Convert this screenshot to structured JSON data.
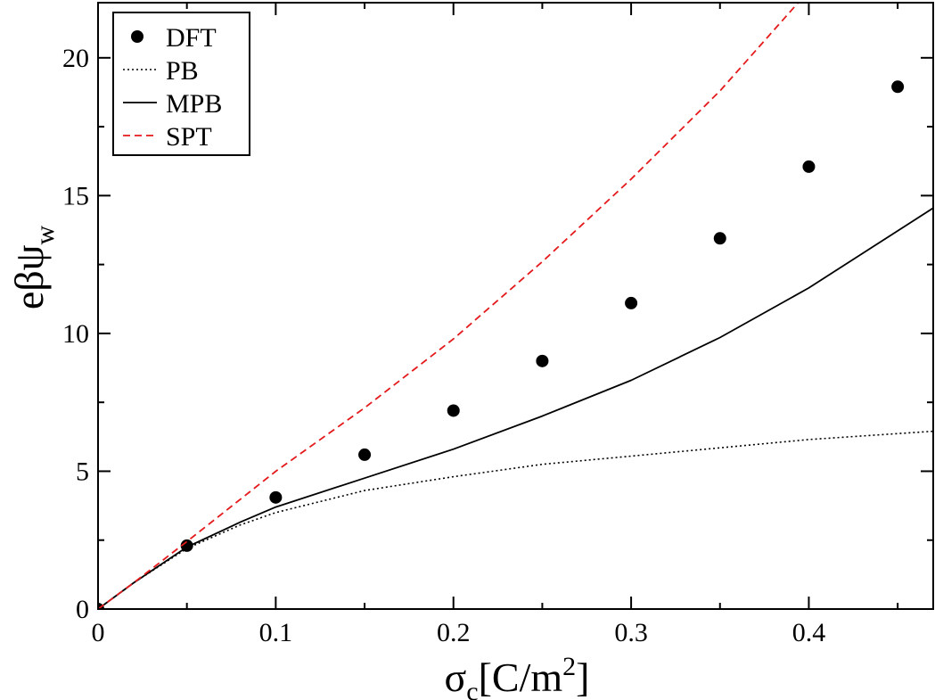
{
  "chart_data": {
    "type": "line",
    "xlabel": {
      "base": "σ",
      "sub": "c",
      "rest": "[C/m",
      "sup": "2",
      "end": "]"
    },
    "ylabel": {
      "base": "eβψ",
      "sub": "w"
    },
    "xlim": [
      0,
      0.47
    ],
    "ylim": [
      0,
      22
    ],
    "xticks": [
      0,
      0.1,
      0.2,
      0.3,
      0.4
    ],
    "xtick_labels": [
      "0",
      "0.1",
      "0.2",
      "0.3",
      "0.4"
    ],
    "yticks": [
      0,
      5,
      10,
      15,
      20
    ],
    "ytick_labels": [
      "0",
      "5",
      "10",
      "15",
      "20"
    ],
    "legend_position": "top-left",
    "series": [
      {
        "name": "DFT",
        "style": "markers",
        "color": "#000000",
        "x": [
          0,
          0.05,
          0.1,
          0.15,
          0.2,
          0.25,
          0.3,
          0.35,
          0.4,
          0.45
        ],
        "y": [
          0,
          2.3,
          4.05,
          5.6,
          7.2,
          9.0,
          11.1,
          13.45,
          16.05,
          18.95
        ]
      },
      {
        "name": "PB",
        "style": "dotted",
        "color": "#000000",
        "x": [
          0,
          0.02,
          0.05,
          0.08,
          0.1,
          0.15,
          0.2,
          0.25,
          0.3,
          0.35,
          0.4,
          0.47
        ],
        "y": [
          0,
          0.95,
          2.2,
          3.05,
          3.5,
          4.3,
          4.8,
          5.25,
          5.55,
          5.85,
          6.15,
          6.45
        ]
      },
      {
        "name": "MPB",
        "style": "solid",
        "color": "#000000",
        "x": [
          0,
          0.02,
          0.05,
          0.08,
          0.1,
          0.15,
          0.2,
          0.25,
          0.3,
          0.35,
          0.4,
          0.47
        ],
        "y": [
          0,
          0.95,
          2.25,
          3.15,
          3.7,
          4.75,
          5.8,
          7.0,
          8.3,
          9.85,
          11.65,
          14.55
        ]
      },
      {
        "name": "SPT",
        "style": "dashed",
        "color": "#e41a1c",
        "x": [
          0,
          0.02,
          0.05,
          0.1,
          0.15,
          0.2,
          0.25,
          0.3,
          0.35,
          0.394
        ],
        "y": [
          0,
          0.95,
          2.45,
          5.0,
          7.3,
          9.8,
          12.6,
          15.6,
          18.8,
          22.0
        ]
      }
    ]
  }
}
